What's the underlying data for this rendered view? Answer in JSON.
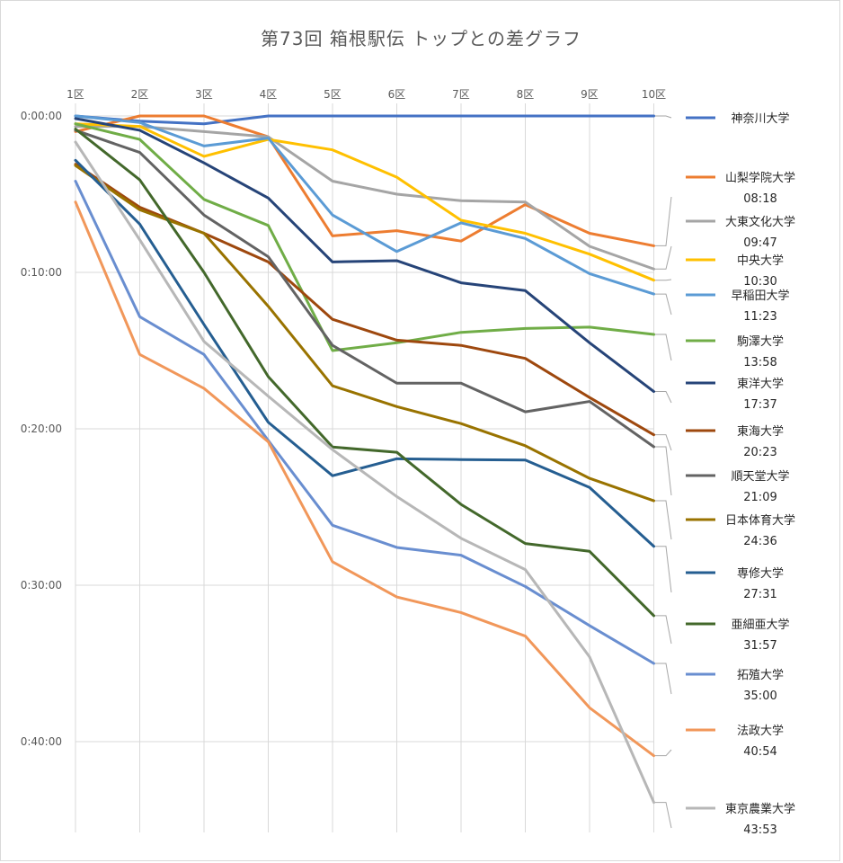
{
  "chart_data": {
    "type": "line",
    "title": "第73回 箱根駅伝 トップとの差グラフ",
    "xlabel": "",
    "ylabel": "",
    "categories": [
      "1区",
      "2区",
      "3区",
      "4区",
      "5区",
      "6区",
      "7区",
      "8区",
      "9区",
      "10区"
    ],
    "ylim_seconds": [
      0,
      2760
    ],
    "y_ticks": [
      {
        "value": 0,
        "label": "0:00:00"
      },
      {
        "value": 600,
        "label": "0:10:00"
      },
      {
        "value": 1200,
        "label": "0:20:00"
      },
      {
        "value": 1800,
        "label": "0:30:00"
      },
      {
        "value": 2400,
        "label": "0:40:00"
      }
    ],
    "grid": true,
    "series": [
      {
        "name": "神奈川大学",
        "final_label": "",
        "color": "#4472c4",
        "values": [
          0,
          20,
          30,
          0,
          0,
          0,
          0,
          0,
          0,
          0
        ]
      },
      {
        "name": "山梨学院大学",
        "final_label": "08:18",
        "color": "#ed7d31",
        "values": [
          60,
          0,
          0,
          80,
          460,
          440,
          480,
          340,
          450,
          498
        ]
      },
      {
        "name": "大東文化大学",
        "final_label": "09:47",
        "color": "#a5a5a5",
        "values": [
          40,
          40,
          60,
          80,
          250,
          300,
          325,
          330,
          500,
          587
        ]
      },
      {
        "name": "中央大学",
        "final_label": "10:30",
        "color": "#ffc000",
        "values": [
          30,
          40,
          155,
          90,
          130,
          235,
          400,
          450,
          530,
          630
        ]
      },
      {
        "name": "早稲田大学",
        "final_label": "11:23",
        "color": "#5b9bd5",
        "values": [
          0,
          25,
          115,
          85,
          380,
          520,
          410,
          470,
          605,
          683
        ]
      },
      {
        "name": "駒澤大学",
        "final_label": "13:58",
        "color": "#70ad47",
        "values": [
          30,
          90,
          320,
          420,
          900,
          870,
          830,
          815,
          810,
          838
        ]
      },
      {
        "name": "東洋大学",
        "final_label": "17:37",
        "color": "#264478",
        "values": [
          10,
          55,
          180,
          315,
          560,
          555,
          640,
          670,
          870,
          1057
        ]
      },
      {
        "name": "東海大学",
        "final_label": "20:23",
        "color": "#9e480e",
        "values": [
          185,
          350,
          450,
          560,
          780,
          860,
          880,
          930,
          1080,
          1223
        ]
      },
      {
        "name": "順天堂大学",
        "final_label": "21:09",
        "color": "#636363",
        "values": [
          55,
          140,
          380,
          540,
          880,
          1025,
          1025,
          1135,
          1095,
          1269
        ]
      },
      {
        "name": "日本体育大学",
        "final_label": "24:36",
        "color": "#997300",
        "values": [
          190,
          360,
          450,
          730,
          1035,
          1115,
          1180,
          1265,
          1390,
          1476
        ]
      },
      {
        "name": "専修大学",
        "final_label": "27:31",
        "color": "#255e91",
        "values": [
          170,
          415,
          800,
          1175,
          1380,
          1315,
          1318,
          1320,
          1425,
          1651
        ]
      },
      {
        "name": "亜細亜大学",
        "final_label": "31:57",
        "color": "#43682b",
        "values": [
          50,
          245,
          600,
          1000,
          1270,
          1290,
          1490,
          1640,
          1670,
          1917
        ]
      },
      {
        "name": "拓殖大学",
        "final_label": "35:00",
        "color": "#698ed0",
        "values": [
          250,
          770,
          915,
          1245,
          1570,
          1655,
          1685,
          1805,
          1955,
          2100
        ]
      },
      {
        "name": "法政大学",
        "final_label": "40:54",
        "color": "#f1975a",
        "values": [
          330,
          915,
          1045,
          1250,
          1710,
          1845,
          1905,
          1995,
          2270,
          2454
        ]
      },
      {
        "name": "東京農業大学",
        "final_label": "43:53",
        "color": "#b7b7b7",
        "values": [
          100,
          475,
          865,
          1075,
          1280,
          1460,
          1620,
          1740,
          2075,
          2633
        ]
      }
    ]
  }
}
